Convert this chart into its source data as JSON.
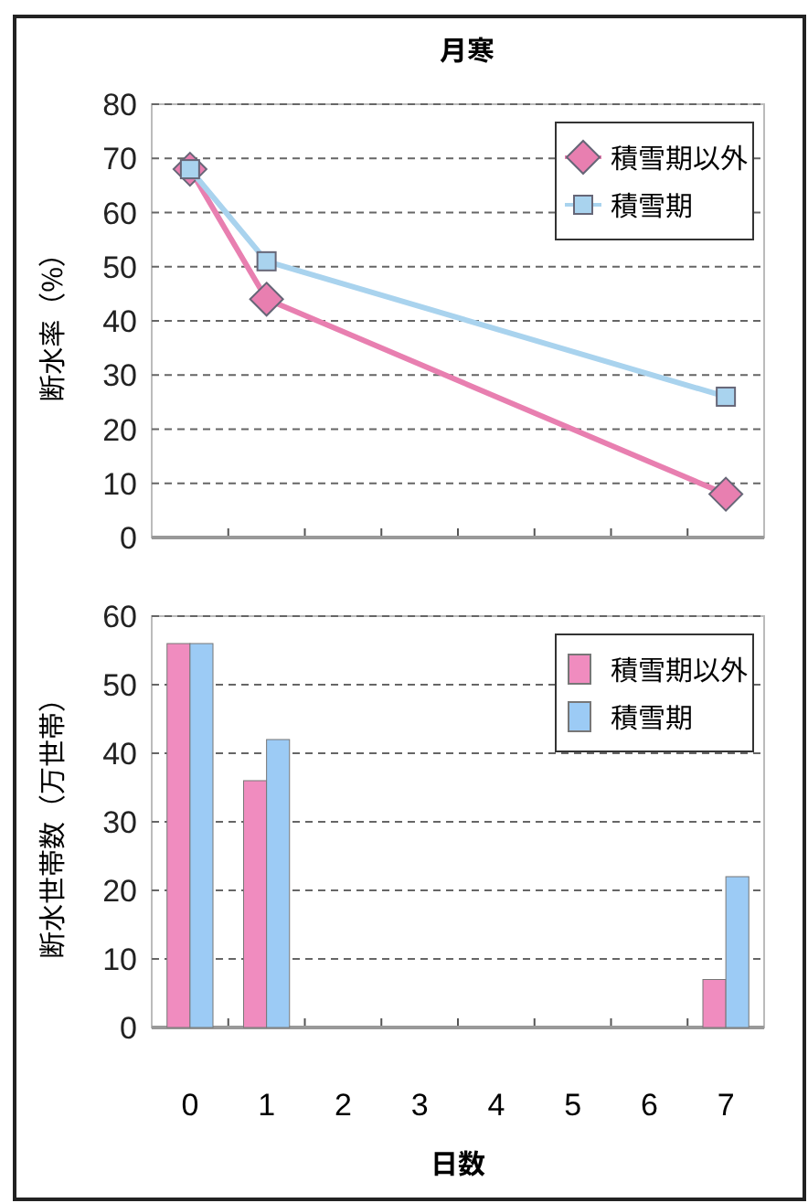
{
  "chart_data": [
    {
      "type": "line",
      "title": "月寒",
      "ylabel": "断水率（%）",
      "categories": [
        null,
        null,
        null,
        null,
        null,
        null,
        null,
        null
      ],
      "ylim": [
        0,
        80
      ],
      "yticks": [
        0,
        10,
        20,
        30,
        40,
        50,
        60,
        70,
        80
      ],
      "tick_labels": "y",
      "grid": "y",
      "legend": "top right",
      "series": [
        {
          "name": "積雪期以外",
          "color": "#e87fb0",
          "marker": "diamond",
          "values": [
            68,
            44,
            null,
            null,
            null,
            null,
            null,
            8
          ]
        },
        {
          "name": "積雪期",
          "color": "#a9d3ee",
          "marker": "square",
          "values": [
            68,
            51,
            null,
            null,
            null,
            null,
            null,
            26
          ]
        }
      ]
    },
    {
      "type": "bar",
      "ylabel": "断水世帯数（万世帯）",
      "xlabel": "日数",
      "categories": [
        "0",
        "1",
        "2",
        "3",
        "4",
        "5",
        "6",
        "7"
      ],
      "ylim": [
        0,
        60
      ],
      "yticks": [
        0,
        10,
        20,
        30,
        40,
        50,
        60
      ],
      "grid": "y",
      "legend": "top right",
      "series": [
        {
          "name": "積雪期以外",
          "color": "#f08cbf",
          "values": [
            56,
            36,
            0,
            0,
            0,
            0,
            0,
            7
          ]
        },
        {
          "name": "積雪期",
          "color": "#9ccbf5",
          "values": [
            56,
            42,
            0,
            0,
            0,
            0,
            0,
            22
          ]
        }
      ]
    }
  ]
}
